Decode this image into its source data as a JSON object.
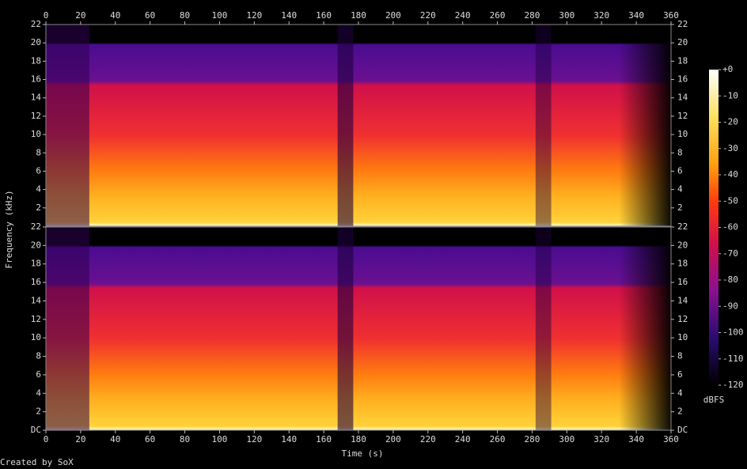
{
  "chart_data": {
    "type": "spectrogram",
    "xlabel": "Time (s)",
    "ylabel": "Frequency (kHz)",
    "credit": "Created by SoX",
    "xlim": [
      0,
      360
    ],
    "xticks": [
      0,
      20,
      40,
      60,
      80,
      100,
      120,
      140,
      160,
      180,
      200,
      220,
      240,
      260,
      280,
      300,
      320,
      340,
      360
    ],
    "panels": [
      {
        "ylim": [
          0,
          22
        ],
        "yticks": [
          2,
          4,
          6,
          8,
          10,
          12,
          14,
          16,
          18,
          20,
          22
        ]
      },
      {
        "ylim": [
          0,
          22
        ],
        "yticks": [
          {
            "value": 0,
            "label": "DC"
          },
          2,
          4,
          6,
          8,
          10,
          12,
          14,
          16,
          18,
          20,
          22
        ]
      }
    ],
    "colorbar": {
      "label": "dBFS",
      "lim": [
        -120,
        0
      ],
      "ticks": [
        {
          "value": 0,
          "label": "+0"
        },
        -10,
        -20,
        -30,
        -40,
        -50,
        -60,
        -70,
        -80,
        -90,
        -100,
        -110,
        -120
      ]
    }
  }
}
